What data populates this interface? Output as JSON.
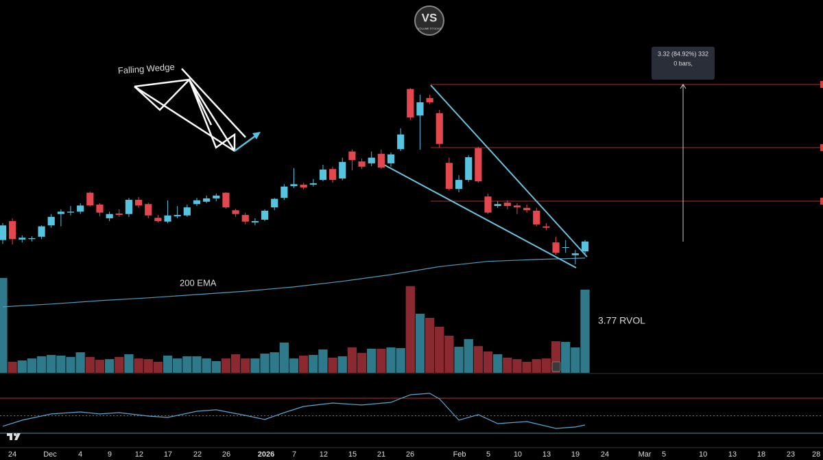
{
  "chart_data": {
    "type": "candlestick",
    "up_color": "#56c3e0",
    "down_color": "#e5474e",
    "volume_up_color": "#2f7a8a",
    "volume_down_color": "#8a2a30",
    "xlim": [
      -0.28,
      84.52
    ],
    "ylim": [
      2.33,
      9.0
    ],
    "open": [
      3.93,
      4.33,
      3.94,
      3.95,
      4.0,
      4.24,
      4.48,
      4.51,
      4.53,
      4.93,
      4.68,
      4.39,
      4.49,
      4.48,
      4.78,
      4.69,
      4.4,
      4.32,
      4.43,
      4.45,
      4.69,
      4.74,
      4.81,
      4.93,
      4.56,
      4.46,
      4.3,
      4.36,
      4.62,
      4.82,
      5.07,
      5.1,
      5.1,
      5.2,
      5.43,
      5.23,
      5.8,
      5.59,
      5.55,
      5.75,
      5.55,
      5.85,
      7.12,
      6.56,
      6.93,
      6.61,
      5.56,
      5.01,
      5.2,
      5.87,
      4.85,
      4.65,
      4.72,
      4.66,
      4.61,
      4.55,
      4.22,
      3.88,
      3.78,
      3.61,
      3.69
    ],
    "high": [
      4.29,
      4.39,
      4.03,
      4.01,
      4.24,
      4.48,
      4.58,
      4.65,
      4.71,
      4.95,
      4.71,
      4.53,
      4.58,
      4.82,
      4.84,
      4.72,
      4.46,
      4.77,
      4.65,
      4.68,
      4.82,
      4.87,
      4.91,
      4.94,
      4.59,
      4.51,
      4.39,
      4.58,
      4.82,
      5.11,
      5.45,
      5.14,
      5.22,
      5.52,
      5.48,
      5.67,
      5.84,
      5.65,
      5.8,
      5.84,
      5.78,
      6.29,
      7.14,
      7.0,
      7.0,
      6.68,
      5.67,
      5.3,
      5.72,
      5.9,
      4.91,
      4.75,
      4.77,
      4.71,
      4.68,
      4.61,
      4.29,
      4.0,
      3.93,
      3.72,
      3.93
    ],
    "low": [
      3.85,
      3.84,
      3.88,
      3.9,
      3.95,
      4.19,
      4.22,
      4.45,
      4.48,
      4.64,
      4.43,
      4.33,
      4.42,
      4.42,
      4.61,
      4.39,
      4.3,
      4.29,
      4.39,
      4.42,
      4.65,
      4.71,
      4.75,
      4.59,
      4.42,
      4.26,
      4.24,
      4.33,
      4.56,
      4.78,
      5.03,
      5.0,
      5.06,
      5.17,
      5.14,
      5.19,
      5.4,
      5.43,
      5.49,
      5.43,
      5.48,
      5.81,
      6.46,
      5.84,
      6.8,
      5.88,
      4.98,
      4.94,
      5.16,
      5.14,
      4.48,
      4.61,
      4.58,
      4.48,
      4.51,
      4.22,
      4.14,
      3.62,
      3.66,
      3.42,
      3.61
    ],
    "close": [
      4.24,
      3.95,
      3.98,
      3.97,
      4.22,
      4.42,
      4.53,
      4.53,
      4.66,
      4.66,
      4.51,
      4.48,
      4.46,
      4.78,
      4.66,
      4.45,
      4.33,
      4.45,
      4.46,
      4.62,
      4.77,
      4.81,
      4.87,
      4.62,
      4.48,
      4.32,
      4.33,
      4.55,
      4.8,
      5.06,
      5.11,
      5.04,
      5.13,
      5.42,
      5.2,
      5.58,
      5.62,
      5.48,
      5.67,
      5.46,
      5.74,
      6.16,
      6.52,
      6.84,
      6.84,
      5.96,
      5.01,
      5.2,
      5.68,
      5.17,
      4.51,
      4.69,
      4.65,
      4.62,
      4.56,
      4.26,
      4.19,
      3.66,
      3.78,
      3.65,
      3.9
    ],
    "volume_lim": [
      0,
      4.45
    ],
    "volume": [
      4.3,
      0.5,
      0.56,
      0.65,
      0.75,
      0.81,
      0.78,
      0.72,
      0.93,
      0.72,
      0.59,
      0.62,
      0.72,
      0.84,
      0.65,
      0.62,
      0.5,
      0.78,
      0.65,
      0.75,
      0.75,
      0.65,
      0.53,
      0.65,
      0.84,
      0.65,
      0.65,
      0.87,
      0.93,
      1.37,
      0.65,
      0.78,
      0.81,
      1.06,
      0.69,
      0.75,
      1.15,
      0.9,
      1.09,
      1.09,
      1.15,
      1.12,
      3.93,
      2.68,
      2.49,
      2.09,
      1.68,
      1.18,
      1.53,
      1.21,
      0.97,
      0.84,
      0.69,
      0.62,
      0.5,
      0.62,
      0.65,
      1.43,
      1.4,
      1.15,
      3.77
    ],
    "ema": {
      "color": "#4f9fc0",
      "x": [
        0,
        5,
        10,
        15,
        20,
        25,
        30,
        35,
        40,
        45,
        50,
        55,
        60
      ],
      "values": [
        2.52,
        2.58,
        2.65,
        2.71,
        2.78,
        2.85,
        2.94,
        3.06,
        3.2,
        3.37,
        3.48,
        3.52,
        3.55
      ]
    },
    "rsi": {
      "color": "#5aa9d6",
      "ylim": [
        15.1,
        97.4
      ],
      "levels": [
        70,
        50,
        30
      ],
      "x": [
        0,
        2,
        5,
        8,
        10,
        12,
        15,
        17,
        20,
        22,
        25,
        27,
        29,
        31,
        34,
        37,
        40,
        42,
        44,
        45,
        47,
        49,
        51,
        54,
        57,
        59,
        60
      ],
      "values": [
        37.9,
        44.9,
        52,
        54.3,
        52,
        53.5,
        49.6,
        48,
        55.1,
        56.7,
        50.4,
        45.7,
        53.5,
        60.6,
        64.5,
        62.2,
        65.3,
        73.9,
        75.5,
        69.2,
        44.9,
        51.2,
        41,
        43.3,
        35.5,
        37.1,
        39.4
      ]
    },
    "xticks": [
      {
        "value": 0.99,
        "label": "24"
      },
      {
        "value": 4.88,
        "label": "Dec"
      },
      {
        "value": 7.99,
        "label": "4"
      },
      {
        "value": 11.02,
        "label": "9"
      },
      {
        "value": 14.06,
        "label": "12"
      },
      {
        "value": 17.03,
        "label": "17"
      },
      {
        "value": 20.07,
        "label": "22"
      },
      {
        "value": 23.04,
        "label": "26"
      },
      {
        "value": 27.14,
        "label": "2026"
      },
      {
        "value": 30.04,
        "label": "7"
      },
      {
        "value": 33.07,
        "label": "12"
      },
      {
        "value": 36.04,
        "label": "15"
      },
      {
        "value": 39.01,
        "label": "21"
      },
      {
        "value": 41.98,
        "label": "26"
      },
      {
        "value": 47.07,
        "label": "Feb"
      },
      {
        "value": 50.04,
        "label": "5"
      },
      {
        "value": 53.07,
        "label": "10"
      },
      {
        "value": 56.04,
        "label": "13"
      },
      {
        "value": 59.01,
        "label": "19"
      },
      {
        "value": 62.05,
        "label": "24"
      },
      {
        "value": 66.15,
        "label": "Mar"
      },
      {
        "value": 68.13,
        "label": "5"
      },
      {
        "value": 72.16,
        "label": "10"
      },
      {
        "value": 75.19,
        "label": "13"
      },
      {
        "value": 78.16,
        "label": "18"
      },
      {
        "value": 81.2,
        "label": "23"
      },
      {
        "value": 83.82,
        "label": "28"
      }
    ],
    "annotations": {
      "pattern": "Falling Wedge",
      "ema_label": "200 EMA",
      "rvol": "3.77 RVOL",
      "measure": "3.32 (84.92%) 332",
      "measure_bars": "0 bars,"
    },
    "watermark": {
      "text": "VS",
      "subtext": "VOLUME STOCKS"
    }
  }
}
